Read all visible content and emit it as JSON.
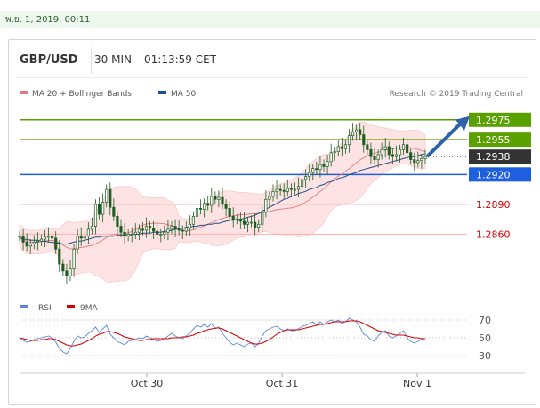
{
  "top_date": "พ.ย. 1, 2019, 00:11",
  "header": {
    "pair": "GBP/USD",
    "timeframe": "30 MIN",
    "time": "01:13:59 CET"
  },
  "legend": {
    "ma20": "MA 20 + Bollinger Bands",
    "ma50": "MA 50",
    "credit": "Research © 2019 Trading Central",
    "rsi": "RSI",
    "ma9": "9MA"
  },
  "colors": {
    "ma20": "#e37a7a",
    "ma50": "#1f4e8c",
    "band_fill": "#fde0e0",
    "resistance": "#5aa000",
    "support": "#1e5fe0",
    "current": "#333333",
    "target_line": "#ffb6b6",
    "target_text": "#d40000",
    "arrow": "#2e62a8",
    "candle": "#1b5e20",
    "rsi": "#5a86d6",
    "rsi_ma": "#d40000"
  },
  "chart_data": {
    "type": "candlestick",
    "xlabels": [
      "Oct 30",
      "Oct 31",
      "Nov 1"
    ],
    "ylim": [
      1.2805,
      1.299
    ],
    "price_levels": [
      {
        "value": 1.2975,
        "label": "1.2975",
        "kind": "resistance"
      },
      {
        "value": 1.2955,
        "label": "1.2955",
        "kind": "resistance"
      },
      {
        "value": 1.2938,
        "label": "1.2938",
        "kind": "current"
      },
      {
        "value": 1.292,
        "label": "1.2920",
        "kind": "support"
      },
      {
        "value": 1.289,
        "label": "1.2890",
        "kind": "target"
      },
      {
        "value": 1.286,
        "label": "1.2860",
        "kind": "target"
      }
    ],
    "close_series": [
      1.2858,
      1.2852,
      1.2848,
      1.285,
      1.2852,
      1.2853,
      1.2855,
      1.2857,
      1.2858,
      1.2856,
      1.2845,
      1.283,
      1.2823,
      1.2818,
      1.2825,
      1.2845,
      1.2858,
      1.2856,
      1.2858,
      1.2865,
      1.2868,
      1.289,
      1.288,
      1.2892,
      1.2905,
      1.2887,
      1.2878,
      1.2868,
      1.2862,
      1.2858,
      1.286,
      1.286,
      1.2862,
      1.2865,
      1.2864,
      1.2868,
      1.2866,
      1.2863,
      1.286,
      1.286,
      1.2862,
      1.2865,
      1.2868,
      1.2865,
      1.2864,
      1.2863,
      1.2866,
      1.287,
      1.2878,
      1.2886,
      1.2885,
      1.2891,
      1.2889,
      1.2898,
      1.2895,
      1.2897,
      1.289,
      1.2886,
      1.2878,
      1.2875,
      1.2875,
      1.2873,
      1.287,
      1.2872,
      1.2872,
      1.2867,
      1.287,
      1.2882,
      1.2895,
      1.2898,
      1.2903,
      1.2905,
      1.2904,
      1.2903,
      1.2906,
      1.2905,
      1.2905,
      1.2908,
      1.2915,
      1.2918,
      1.2922,
      1.2926,
      1.2925,
      1.293,
      1.2928,
      1.2933,
      1.2942,
      1.2943,
      1.2948,
      1.2946,
      1.295,
      1.2959,
      1.2963,
      1.2965,
      1.296,
      1.295,
      1.2945,
      1.2938,
      1.2935,
      1.294,
      1.2945,
      1.2948,
      1.294,
      1.2938,
      1.294,
      1.2945,
      1.295,
      1.2942,
      1.2935,
      1.2932,
      1.2934,
      1.2936,
      1.2938
    ],
    "ma50_series": [
      1.2856,
      1.2855,
      1.2855,
      1.2854,
      1.2854,
      1.2854,
      1.2853,
      1.2853,
      1.2852,
      1.2852,
      1.2851,
      1.2851,
      1.285,
      1.285,
      1.2851,
      1.2852,
      1.2853,
      1.2853,
      1.2854,
      1.2855,
      1.2856,
      1.2857,
      1.2857,
      1.2858,
      1.2858,
      1.2858,
      1.2858,
      1.2859,
      1.2859,
      1.2859,
      1.2859,
      1.286,
      1.286,
      1.286,
      1.2861,
      1.2861,
      1.2861,
      1.2862,
      1.2862,
      1.2862,
      1.2863,
      1.2863,
      1.2864,
      1.2865,
      1.2866,
      1.2866,
      1.2867,
      1.2867,
      1.2868,
      1.2868,
      1.2869,
      1.2869,
      1.287,
      1.287,
      1.2871,
      1.2871,
      1.2872,
      1.2873,
      1.2874,
      1.2874,
      1.2875,
      1.2875,
      1.2876,
      1.2877,
      1.2878,
      1.2879,
      1.2881,
      1.2883,
      1.2885,
      1.2887,
      1.2889,
      1.2891,
      1.2893,
      1.2895,
      1.2896,
      1.2898,
      1.2899,
      1.2901,
      1.2902,
      1.2903,
      1.2905,
      1.2906,
      1.2907,
      1.2909,
      1.291,
      1.2912,
      1.2913,
      1.2914,
      1.2916,
      1.2917,
      1.2918,
      1.292,
      1.2921,
      1.2922,
      1.2924,
      1.2925,
      1.2926,
      1.2927,
      1.2928,
      1.2929,
      1.293,
      1.2931,
      1.2932,
      1.2933,
      1.2934,
      1.2935,
      1.2936,
      1.2937,
      1.2938,
      1.2938,
      1.2939,
      1.294,
      1.2941
    ],
    "forecast_arrow": {
      "from": 1.2938,
      "to": 1.2975
    },
    "rsi": {
      "ylim": [
        20,
        80
      ],
      "ticks": [
        70,
        50,
        30
      ],
      "series": [
        50,
        47,
        45,
        46,
        48,
        49,
        50,
        51,
        52,
        50,
        45,
        38,
        34,
        32,
        38,
        46,
        52,
        50,
        51,
        55,
        58,
        62,
        56,
        60,
        64,
        54,
        50,
        46,
        44,
        42,
        46,
        47,
        48,
        50,
        49,
        52,
        50,
        48,
        46,
        47,
        49,
        52,
        55,
        52,
        50,
        49,
        52,
        55,
        60,
        64,
        62,
        65,
        62,
        66,
        60,
        62,
        55,
        50,
        45,
        42,
        44,
        42,
        40,
        43,
        44,
        40,
        44,
        52,
        58,
        60,
        62,
        63,
        60,
        58,
        60,
        58,
        58,
        60,
        63,
        64,
        66,
        68,
        64,
        68,
        65,
        68,
        70,
        68,
        70,
        66,
        68,
        72,
        70,
        68,
        62,
        54,
        52,
        48,
        46,
        52,
        56,
        58,
        52,
        50,
        52,
        55,
        58,
        50,
        46,
        44,
        46,
        48,
        49
      ],
      "ma9": [
        50,
        49,
        48,
        47,
        47,
        47,
        48,
        48,
        49,
        49,
        48,
        46,
        44,
        42,
        41,
        41,
        42,
        43,
        45,
        47,
        49,
        52,
        54,
        55,
        57,
        57,
        56,
        55,
        53,
        51,
        50,
        49,
        48,
        47,
        47,
        48,
        48,
        49,
        49,
        49,
        49,
        49,
        50,
        50,
        50,
        51,
        51,
        52,
        53,
        55,
        56,
        58,
        59,
        60,
        61,
        61,
        60,
        58,
        56,
        54,
        52,
        50,
        48,
        46,
        44,
        43,
        43,
        44,
        46,
        48,
        51,
        54,
        56,
        58,
        59,
        59,
        59,
        59,
        60,
        61,
        62,
        63,
        64,
        65,
        65,
        66,
        67,
        68,
        68,
        68,
        68,
        69,
        69,
        69,
        68,
        66,
        64,
        62,
        60,
        58,
        57,
        56,
        55,
        54,
        53,
        53,
        53,
        52,
        51,
        50,
        50,
        49,
        49
      ]
    }
  }
}
